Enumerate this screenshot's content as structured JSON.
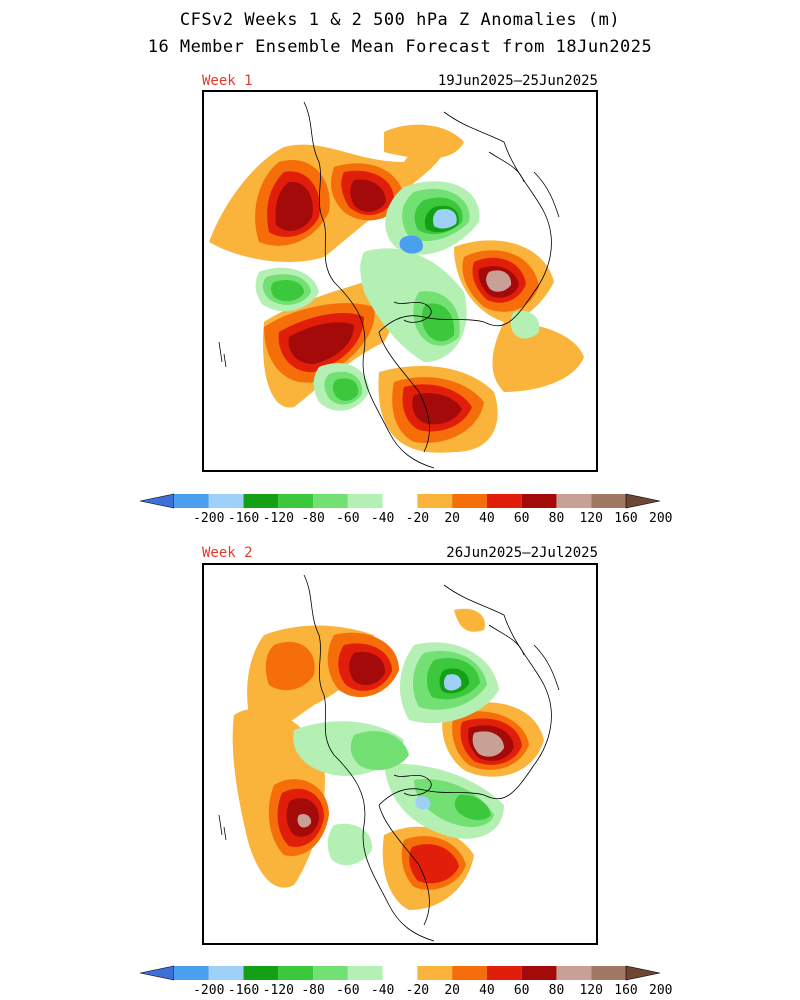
{
  "header": {
    "title_line1": "CFSv2 Weeks 1 & 2 500 hPa Z Anomalies (m)",
    "title_line2": "16 Member Ensemble Mean Forecast from 18Jun2025"
  },
  "panels": [
    {
      "week_label": "Week 1",
      "date_range": "19Jun2025–25Jun2025"
    },
    {
      "week_label": "Week 2",
      "date_range": "26Jun2025–2Jul2025"
    }
  ],
  "colorbar": {
    "labels": [
      "-200",
      "-160",
      "-120",
      "-80",
      "-60",
      "-40",
      "-20",
      "20",
      "40",
      "60",
      "80",
      "120",
      "160",
      "200"
    ],
    "colors": [
      "#3d6fd8",
      "#4aa0ee",
      "#9fd1f8",
      "#14a014",
      "#3cc83c",
      "#73e073",
      "#b4f0b4",
      "#ffffff",
      "#fab43c",
      "#f56e0a",
      "#e11e0a",
      "#a50a0a",
      "#c8a096",
      "#a07864",
      "#6e4632"
    ]
  },
  "colors": {
    "title_text": "#000000",
    "week_label": "#e23b2e"
  }
}
